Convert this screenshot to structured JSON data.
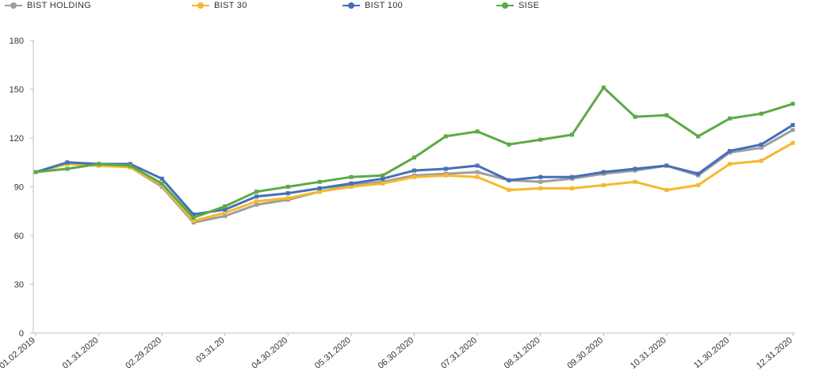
{
  "chart_data": {
    "type": "line",
    "title": "",
    "xlabel": "",
    "ylabel": "",
    "ylim": [
      0,
      180
    ],
    "yticks": [
      0,
      30,
      60,
      90,
      120,
      150,
      180
    ],
    "grid": false,
    "legend_position": "top",
    "x_tick_labels": [
      "01.02.2019",
      "01.31.2020",
      "02.29.2020",
      "03.31.20",
      "04.30.2020",
      "05.31.2020",
      "06.30.2020",
      "07.31.2020",
      "08.31.2020",
      "09.30.2020",
      "10.31.2020",
      "11.30.2020",
      "12.31.2020"
    ],
    "x": [
      0,
      0.5,
      1,
      1.5,
      2,
      2.5,
      3,
      3.5,
      4,
      4.5,
      5,
      5.5,
      6,
      6.5,
      7,
      7.5,
      8,
      8.5,
      9,
      9.5,
      10,
      10.5,
      11,
      11.5,
      12
    ],
    "series": [
      {
        "name": "BIST HOLDING",
        "color": "#9E9E9E",
        "values": [
          99,
          104,
          103,
          102,
          90,
          68,
          72,
          79,
          82,
          87,
          91,
          93,
          97,
          98,
          99,
          94,
          93,
          95,
          98,
          100,
          103,
          97,
          111,
          114,
          125
        ]
      },
      {
        "name": "BIST 30",
        "color": "#F6B92B",
        "values": [
          99,
          104,
          103,
          102,
          91,
          69,
          74,
          81,
          83,
          87,
          90,
          92,
          96,
          97,
          96,
          88,
          89,
          89,
          91,
          93,
          88,
          91,
          104,
          106,
          117
        ]
      },
      {
        "name": "BIST 100",
        "color": "#4470B8",
        "values": [
          99,
          105,
          104,
          104,
          95,
          73,
          76,
          84,
          86,
          89,
          92,
          95,
          100,
          101,
          103,
          94,
          96,
          96,
          99,
          101,
          103,
          98,
          112,
          116,
          128
        ]
      },
      {
        "name": "SISE",
        "color": "#5BAA46",
        "values": [
          99,
          101,
          104,
          103,
          92,
          71,
          78,
          87,
          90,
          93,
          96,
          97,
          108,
          121,
          124,
          116,
          119,
          122,
          151,
          133,
          134,
          121,
          132,
          135,
          141
        ]
      }
    ]
  }
}
